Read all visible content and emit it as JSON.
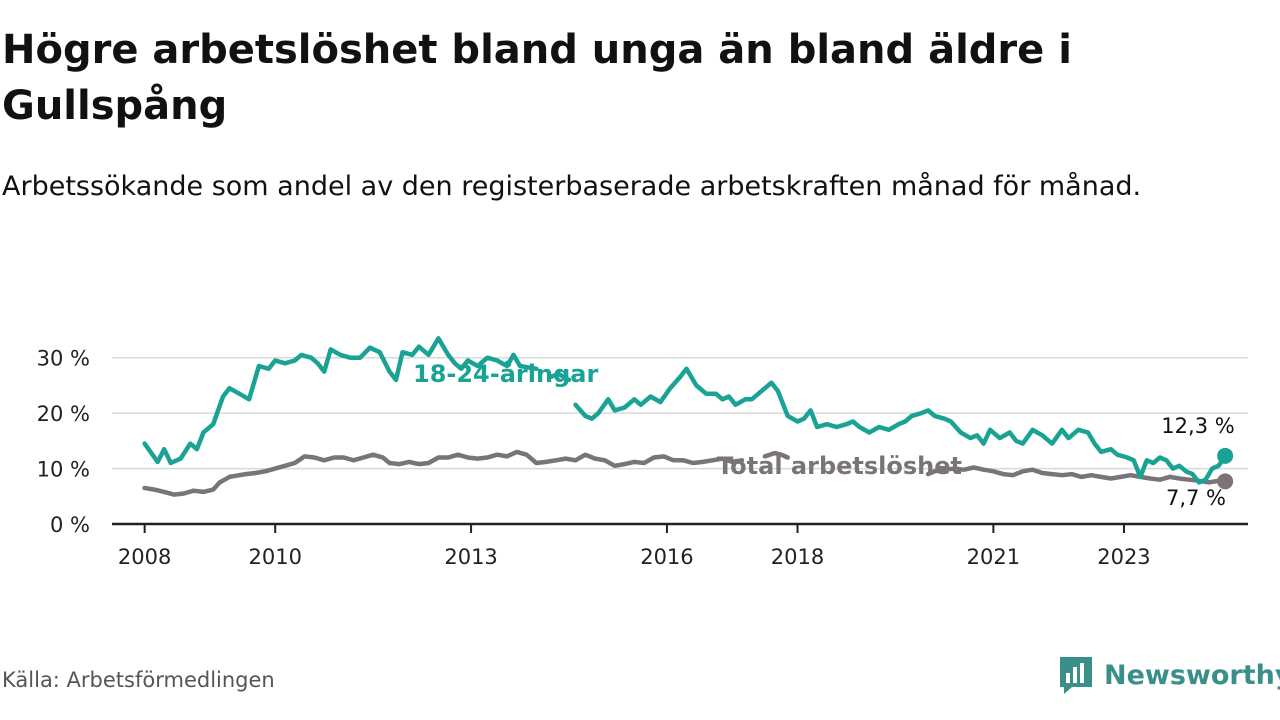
{
  "header": {
    "title": "Högre arbetslöshet bland unga än bland äldre i Gullspång",
    "subtitle": "Arbetssökande som andel av den registerbaserade arbetskraften månad för månad."
  },
  "footer": {
    "source": "Källa: Arbetsförmedlingen",
    "brand": "Newsworthy",
    "brand_icon": "bar-chart-icon"
  },
  "colors": {
    "young": "#1aa395",
    "total": "#7a7479",
    "brand": "#3b8f8a",
    "axis": "#222222",
    "grid": "#d9d9d9"
  },
  "chart_data": {
    "type": "line",
    "title": "Högre arbetslöshet bland unga än bland äldre i Gullspång",
    "xlabel": "",
    "ylabel": "",
    "ylim": [
      0,
      35
    ],
    "xlim": [
      2007.5,
      2024.9
    ],
    "y_ticks": [
      0,
      10,
      20,
      30
    ],
    "y_tick_labels": [
      "0 %",
      "10 %",
      "20 %",
      "30 %"
    ],
    "x_ticks": [
      2008,
      2010,
      2013,
      2016,
      2018,
      2021,
      2023
    ],
    "x_tick_labels": [
      "2008",
      "2010",
      "2013",
      "2016",
      "2018",
      "2021",
      "2023"
    ],
    "grid": true,
    "series": [
      {
        "name": "18-24-åringar",
        "label": "18-24-åringar",
        "end_label": "12,3 %",
        "points": [
          [
            2008.0,
            14.5
          ],
          [
            2008.2,
            11.2
          ],
          [
            2008.3,
            13.5
          ],
          [
            2008.4,
            11.0
          ],
          [
            2008.55,
            11.8
          ],
          [
            2008.7,
            14.5
          ],
          [
            2008.8,
            13.5
          ],
          [
            2008.9,
            16.5
          ],
          [
            2009.05,
            18.0
          ],
          [
            2009.2,
            23.0
          ],
          [
            2009.3,
            24.5
          ],
          [
            2009.45,
            23.5
          ],
          [
            2009.6,
            22.5
          ],
          [
            2009.75,
            28.5
          ],
          [
            2009.9,
            28.0
          ],
          [
            2010.0,
            29.5
          ],
          [
            2010.15,
            29.0
          ],
          [
            2010.3,
            29.5
          ],
          [
            2010.4,
            30.5
          ],
          [
            2010.55,
            30.0
          ],
          [
            2010.65,
            29.0
          ],
          [
            2010.75,
            27.5
          ],
          [
            2010.85,
            31.5
          ],
          [
            2011.0,
            30.5
          ],
          [
            2011.15,
            30.0
          ],
          [
            2011.3,
            30.0
          ],
          [
            2011.45,
            31.8
          ],
          [
            2011.6,
            31.0
          ],
          [
            2011.75,
            27.5
          ],
          [
            2011.85,
            26.0
          ],
          [
            2011.95,
            31.0
          ],
          [
            2012.1,
            30.5
          ],
          [
            2012.2,
            32.0
          ],
          [
            2012.35,
            30.5
          ],
          [
            2012.5,
            33.5
          ],
          [
            2012.65,
            30.5
          ],
          [
            2012.75,
            29.0
          ],
          [
            2012.85,
            28.0
          ],
          [
            2012.95,
            29.5
          ],
          [
            2013.1,
            28.5
          ],
          [
            2013.25,
            30.0
          ],
          [
            2013.4,
            29.5
          ],
          [
            2013.55,
            28.5
          ],
          [
            2013.65,
            30.5
          ],
          [
            2013.75,
            28.5
          ],
          [
            2014.0,
            28.0
          ],
          null,
          [
            2014.2,
            26.5
          ],
          [
            2014.35,
            27.0
          ],
          [
            2014.5,
            26.0
          ],
          null,
          [
            2014.6,
            21.5
          ],
          [
            2014.75,
            19.5
          ],
          [
            2014.85,
            19.0
          ],
          [
            2014.95,
            20.0
          ],
          [
            2015.1,
            22.5
          ],
          [
            2015.2,
            20.5
          ],
          [
            2015.35,
            21.0
          ],
          [
            2015.5,
            22.5
          ],
          [
            2015.6,
            21.5
          ],
          [
            2015.75,
            23.0
          ],
          [
            2015.9,
            22.0
          ],
          [
            2016.05,
            24.5
          ],
          [
            2016.2,
            26.5
          ],
          [
            2016.3,
            28.0
          ],
          [
            2016.45,
            25.0
          ],
          [
            2016.6,
            23.5
          ],
          [
            2016.75,
            23.5
          ],
          [
            2016.85,
            22.5
          ],
          [
            2016.95,
            23.0
          ],
          [
            2017.05,
            21.5
          ],
          [
            2017.2,
            22.5
          ],
          [
            2017.3,
            22.5
          ],
          [
            2017.45,
            24.0
          ],
          [
            2017.6,
            25.5
          ],
          [
            2017.7,
            24.0
          ],
          [
            2017.85,
            19.5
          ],
          [
            2018.0,
            18.5
          ],
          [
            2018.1,
            19.0
          ],
          [
            2018.2,
            20.5
          ],
          [
            2018.3,
            17.5
          ],
          [
            2018.45,
            18.0
          ],
          [
            2018.6,
            17.5
          ],
          [
            2018.75,
            18.0
          ],
          [
            2018.85,
            18.5
          ],
          [
            2018.95,
            17.5
          ],
          [
            2019.1,
            16.5
          ],
          [
            2019.25,
            17.5
          ],
          [
            2019.4,
            17.0
          ],
          [
            2019.55,
            18.0
          ],
          [
            2019.65,
            18.5
          ],
          [
            2019.75,
            19.5
          ],
          [
            2019.9,
            20.0
          ],
          [
            2020.0,
            20.5
          ],
          [
            2020.1,
            19.5
          ],
          [
            2020.25,
            19.0
          ],
          [
            2020.35,
            18.5
          ],
          [
            2020.5,
            16.5
          ],
          [
            2020.65,
            15.5
          ],
          [
            2020.75,
            16.0
          ],
          [
            2020.85,
            14.5
          ],
          [
            2020.95,
            17.0
          ],
          [
            2021.1,
            15.5
          ],
          [
            2021.25,
            16.5
          ],
          [
            2021.35,
            15.0
          ],
          [
            2021.45,
            14.5
          ],
          [
            2021.6,
            17.0
          ],
          [
            2021.75,
            16.0
          ],
          [
            2021.9,
            14.5
          ],
          [
            2022.05,
            17.0
          ],
          [
            2022.15,
            15.5
          ],
          [
            2022.3,
            17.0
          ],
          [
            2022.45,
            16.5
          ],
          [
            2022.55,
            14.5
          ],
          [
            2022.65,
            13.0
          ],
          [
            2022.8,
            13.5
          ],
          [
            2022.9,
            12.5
          ],
          [
            2023.05,
            12.0
          ],
          [
            2023.15,
            11.5
          ],
          [
            2023.25,
            8.5
          ],
          [
            2023.35,
            11.5
          ],
          [
            2023.45,
            11.0
          ],
          [
            2023.55,
            12.0
          ],
          [
            2023.65,
            11.5
          ],
          [
            2023.75,
            10.0
          ],
          [
            2023.85,
            10.5
          ],
          [
            2023.95,
            9.5
          ],
          [
            2024.05,
            9.0
          ],
          [
            2024.15,
            7.5
          ],
          [
            2024.25,
            8.0
          ],
          [
            2024.35,
            10.0
          ],
          [
            2024.45,
            10.5
          ],
          [
            2024.55,
            12.3
          ]
        ]
      },
      {
        "name": "Total arbetslöshet",
        "label": "Total arbetslöshet",
        "end_label": "7,7 %",
        "points": [
          [
            2008.0,
            6.5
          ],
          [
            2008.15,
            6.2
          ],
          [
            2008.3,
            5.8
          ],
          [
            2008.45,
            5.3
          ],
          [
            2008.6,
            5.5
          ],
          [
            2008.75,
            6.0
          ],
          [
            2008.9,
            5.8
          ],
          [
            2009.05,
            6.2
          ],
          [
            2009.15,
            7.5
          ],
          [
            2009.3,
            8.5
          ],
          [
            2009.45,
            8.8
          ],
          [
            2009.55,
            9.0
          ],
          [
            2009.7,
            9.2
          ],
          [
            2009.85,
            9.5
          ],
          [
            2010.0,
            10.0
          ],
          [
            2010.15,
            10.5
          ],
          [
            2010.3,
            11.0
          ],
          [
            2010.45,
            12.2
          ],
          [
            2010.6,
            12.0
          ],
          [
            2010.75,
            11.5
          ],
          [
            2010.9,
            12.0
          ],
          [
            2011.05,
            12.0
          ],
          [
            2011.2,
            11.5
          ],
          [
            2011.35,
            12.0
          ],
          [
            2011.5,
            12.5
          ],
          [
            2011.65,
            12.0
          ],
          [
            2011.75,
            11.0
          ],
          [
            2011.9,
            10.8
          ],
          [
            2012.05,
            11.2
          ],
          [
            2012.2,
            10.8
          ],
          [
            2012.35,
            11.0
          ],
          [
            2012.5,
            12.0
          ],
          [
            2012.65,
            12.0
          ],
          [
            2012.8,
            12.5
          ],
          [
            2012.95,
            12.0
          ],
          [
            2013.1,
            11.8
          ],
          [
            2013.25,
            12.0
          ],
          [
            2013.4,
            12.5
          ],
          [
            2013.55,
            12.2
          ],
          [
            2013.7,
            13.0
          ],
          [
            2013.85,
            12.5
          ],
          [
            2014.0,
            11.0
          ],
          [
            2014.15,
            11.2
          ],
          [
            2014.3,
            11.5
          ],
          [
            2014.45,
            11.8
          ],
          [
            2014.6,
            11.5
          ],
          [
            2014.75,
            12.5
          ],
          [
            2014.9,
            11.8
          ],
          [
            2015.05,
            11.5
          ],
          [
            2015.2,
            10.5
          ],
          [
            2015.35,
            10.8
          ],
          [
            2015.5,
            11.2
          ],
          [
            2015.65,
            11.0
          ],
          [
            2015.8,
            12.0
          ],
          [
            2015.95,
            12.2
          ],
          [
            2016.1,
            11.5
          ],
          [
            2016.25,
            11.5
          ],
          [
            2016.4,
            11.0
          ],
          [
            2016.55,
            11.2
          ],
          [
            2016.7,
            11.5
          ],
          [
            2016.85,
            11.8
          ],
          [
            2017.0,
            11.2
          ],
          [
            2017.15,
            11.5
          ],
          null,
          [
            2017.5,
            12.2
          ],
          [
            2017.65,
            12.8
          ],
          [
            2017.75,
            12.5
          ],
          [
            2017.85,
            12.0
          ],
          null,
          [
            2020.0,
            9.0
          ],
          [
            2020.1,
            9.5
          ],
          [
            2020.25,
            9.8
          ],
          [
            2020.4,
            10.0
          ],
          [
            2020.55,
            9.8
          ],
          [
            2020.7,
            10.2
          ],
          [
            2020.85,
            9.8
          ],
          [
            2021.0,
            9.5
          ],
          [
            2021.15,
            9.0
          ],
          [
            2021.3,
            8.8
          ],
          [
            2021.45,
            9.5
          ],
          [
            2021.6,
            9.8
          ],
          [
            2021.75,
            9.2
          ],
          [
            2021.9,
            9.0
          ],
          [
            2022.05,
            8.8
          ],
          [
            2022.2,
            9.0
          ],
          [
            2022.35,
            8.5
          ],
          [
            2022.5,
            8.8
          ],
          [
            2022.65,
            8.5
          ],
          [
            2022.8,
            8.2
          ],
          [
            2022.95,
            8.5
          ],
          [
            2023.1,
            8.8
          ],
          [
            2023.25,
            8.5
          ],
          [
            2023.4,
            8.2
          ],
          [
            2023.55,
            8.0
          ],
          [
            2023.7,
            8.5
          ],
          [
            2023.85,
            8.2
          ],
          [
            2024.0,
            8.0
          ],
          [
            2024.15,
            7.8
          ],
          [
            2024.3,
            7.5
          ],
          [
            2024.45,
            7.8
          ],
          [
            2024.55,
            7.7
          ]
        ]
      }
    ]
  }
}
